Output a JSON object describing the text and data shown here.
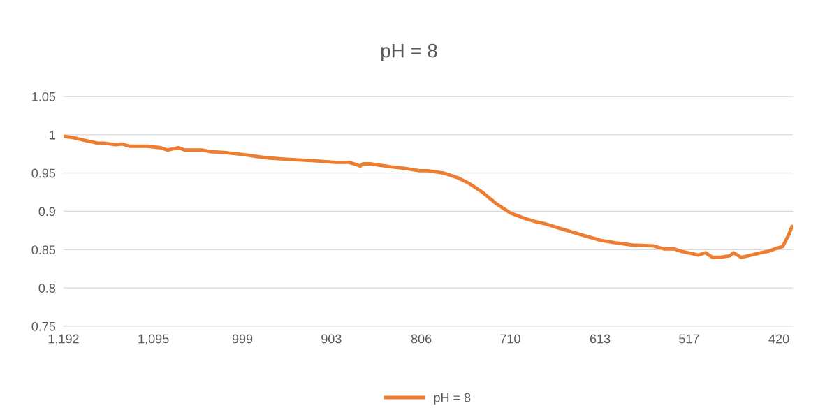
{
  "chart_data": {
    "type": "line",
    "title": "pH = 8",
    "x": [
      1192,
      1181,
      1170,
      1155,
      1148,
      1136,
      1129,
      1121,
      1110,
      1102,
      1087,
      1080,
      1068,
      1061,
      1042,
      1034,
      1019,
      997,
      974,
      952,
      921,
      899,
      884,
      876,
      872,
      869,
      861,
      838,
      823,
      808,
      799,
      782,
      767,
      755,
      740,
      725,
      710,
      695,
      684,
      673,
      657,
      635,
      612,
      597,
      578,
      556,
      544,
      533,
      526,
      514,
      507,
      499,
      492,
      484,
      473,
      469,
      461,
      450,
      439,
      431,
      422,
      416,
      410,
      406
    ],
    "series": [
      {
        "name": "pH = 8",
        "color": "#ed7d31",
        "values": [
          0.998,
          0.996,
          0.993,
          0.989,
          0.989,
          0.987,
          0.988,
          0.985,
          0.985,
          0.985,
          0.983,
          0.98,
          0.983,
          0.98,
          0.98,
          0.978,
          0.977,
          0.974,
          0.97,
          0.968,
          0.966,
          0.964,
          0.964,
          0.961,
          0.959,
          0.962,
          0.962,
          0.958,
          0.956,
          0.953,
          0.953,
          0.95,
          0.944,
          0.937,
          0.925,
          0.91,
          0.898,
          0.891,
          0.887,
          0.884,
          0.878,
          0.87,
          0.862,
          0.859,
          0.856,
          0.855,
          0.851,
          0.851,
          0.848,
          0.845,
          0.843,
          0.846,
          0.84,
          0.84,
          0.842,
          0.846,
          0.84,
          0.843,
          0.846,
          0.848,
          0.852,
          0.854,
          0.868,
          0.88
        ]
      }
    ],
    "xlim": [
      1192,
      405
    ],
    "xticks": [
      {
        "value": 1192,
        "label": "1,192"
      },
      {
        "value": 1095,
        "label": "1,095"
      },
      999,
      903,
      806,
      710,
      613,
      517,
      420
    ],
    "ylim": [
      0.75,
      1.05
    ],
    "yticks": [
      0.75,
      0.8,
      0.85,
      0.9,
      0.95,
      1,
      1.05
    ],
    "grid": "y",
    "legend": "bottom",
    "marker": "none",
    "line_style": "solid"
  }
}
